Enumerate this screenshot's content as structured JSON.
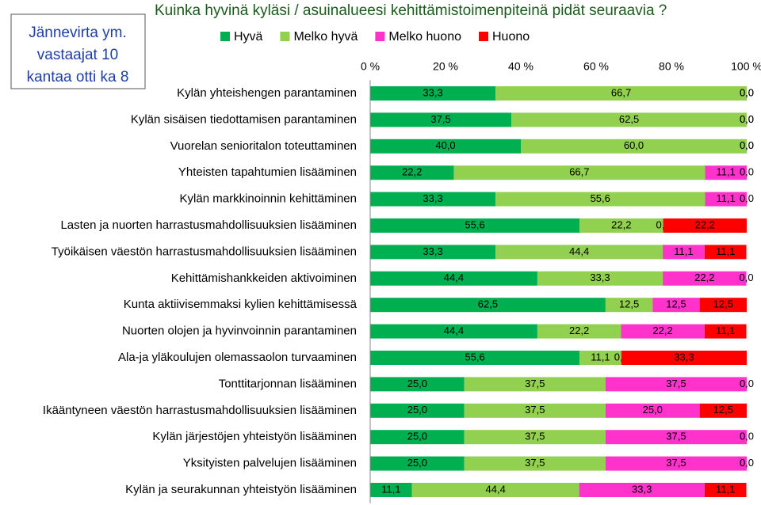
{
  "chart_data": {
    "type": "stacked-bar-horizontal",
    "title": "Kuinka hyvinä kyläsi / asuinalueesi kehittämistoimenpiteinä pidät seuraavia ?",
    "annotation": [
      "Jännevirta ym.",
      "vastaajat 10",
      "kantaa otti ka 8"
    ],
    "categories": [
      "Kylän yhteishengen parantaminen",
      "Kylän sisäisen tiedottamisen parantaminen",
      "Vuorelan senioritalon toteuttaminen",
      "Yhteisten tapahtumien lisääminen",
      "Kylän markkinoinnin kehittäminen",
      "Lasten ja nuorten harrastusmahdollisuuksien lisääminen",
      "Työikäisen väestön harrastusmahdollisuuksien lisääminen",
      "Kehittämishankkeiden aktivoiminen",
      "Kunta aktiivisemmaksi kylien kehittämisessä",
      "Nuorten olojen ja hyvinvoinnin parantaminen",
      "Ala-ja yläkoulujen olemassaolon turvaaminen",
      "Tonttitarjonnan lisääminen",
      "Ikääntyneen väestön harrastusmahdollisuuksien lisääminen",
      "Kylän järjestöjen yhteistyön lisääminen",
      "Yksityisten palvelujen lisääminen",
      "Kylän ja seurakunnan yhteistyön lisääminen"
    ],
    "series": [
      {
        "name": "Hyvä",
        "color": "#00b050",
        "values": [
          33.3,
          37.5,
          40.0,
          22.2,
          33.3,
          55.6,
          33.3,
          44.4,
          62.5,
          44.4,
          55.6,
          25.0,
          25.0,
          25.0,
          25.0,
          11.1
        ],
        "value_labels": [
          "33,3",
          "37,5",
          "40,0",
          "22,2",
          "33,3",
          "55,6",
          "33,3",
          "44,4",
          "62,5",
          "44,4",
          "55,6",
          "25,0",
          "25,0",
          "25,0",
          "25,0",
          "11,1"
        ]
      },
      {
        "name": "Melko hyvä",
        "color": "#92d050",
        "values": [
          66.7,
          62.5,
          60.0,
          66.7,
          55.6,
          22.2,
          44.4,
          33.3,
          12.5,
          22.2,
          11.1,
          37.5,
          37.5,
          37.5,
          37.5,
          44.4
        ],
        "value_labels": [
          "66,7",
          "62,5",
          "60,0",
          "66,7",
          "55,6",
          "22,2",
          "44,4",
          "33,3",
          "12,5",
          "22,2",
          "11,1",
          "37,5",
          "37,5",
          "37,5",
          "37,5",
          "44,4"
        ]
      },
      {
        "name": "Melko huono",
        "color": "#ff33cc",
        "values": [
          0.0,
          0.0,
          0.0,
          11.1,
          11.1,
          0.0,
          11.1,
          22.2,
          12.5,
          22.2,
          0.0,
          37.5,
          25.0,
          37.5,
          37.5,
          33.3
        ],
        "value_labels": [
          "0,0",
          "0,0",
          "0,0",
          "11,1",
          "11,1",
          "0,0",
          "11,1",
          "22,2",
          "12,5",
          "22,2",
          "0,0",
          "37,5",
          "25,0",
          "37,5",
          "37,5",
          "33,3"
        ]
      },
      {
        "name": "Huono",
        "color": "#ff0000",
        "values": [
          0.0,
          0.0,
          0.0,
          0.0,
          0.0,
          22.2,
          11.1,
          0.0,
          12.5,
          11.1,
          33.3,
          0.0,
          12.5,
          0.0,
          0.0,
          11.1
        ],
        "value_labels": [
          "0,0",
          "0,0",
          "0,0",
          "0,0",
          "0,0",
          "22,2",
          "11,1",
          "0,0",
          "12,5",
          "11,1",
          "33,3",
          "0,0",
          "12,5",
          "0,0",
          "0,0",
          "11,1"
        ]
      }
    ],
    "xlim": [
      0,
      100
    ],
    "xticks": [
      {
        "value": 0,
        "label": "0 %"
      },
      {
        "value": 20,
        "label": "20 %"
      },
      {
        "value": 40,
        "label": "40 %"
      },
      {
        "value": 60,
        "label": "60 %"
      },
      {
        "value": 80,
        "label": "80 %"
      },
      {
        "value": 100,
        "label": "100 %"
      }
    ]
  }
}
